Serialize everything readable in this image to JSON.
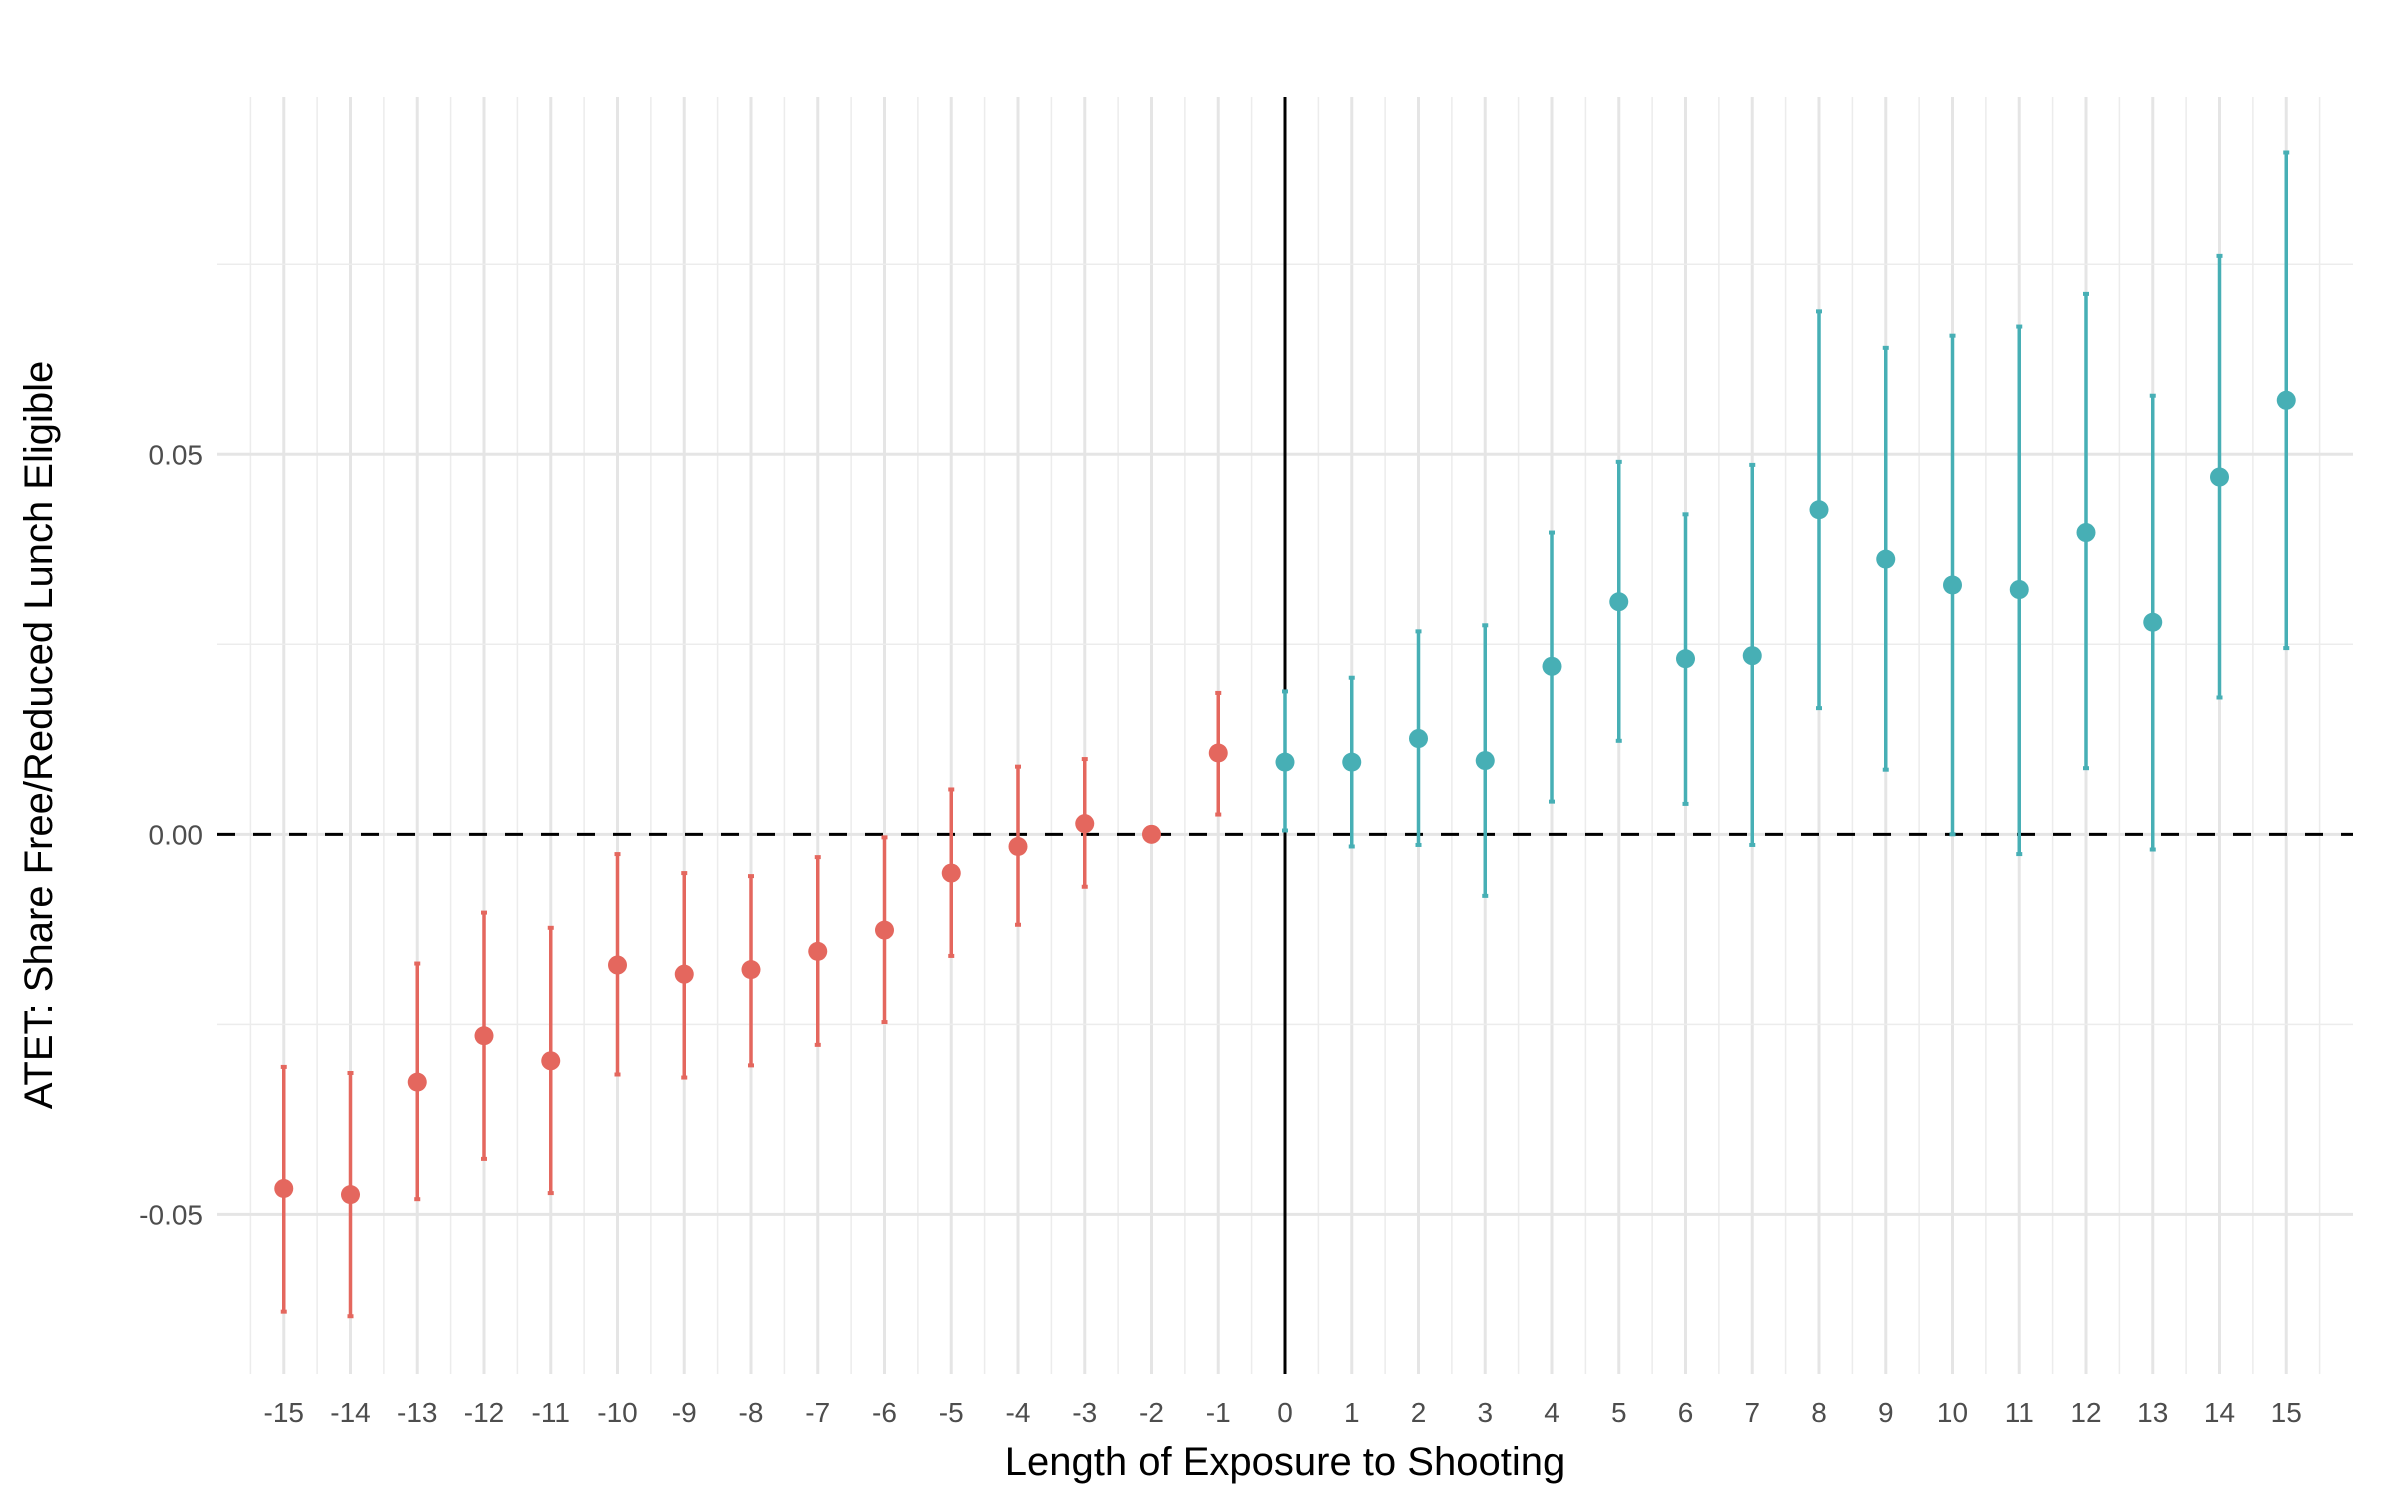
{
  "chart_data": {
    "type": "scatter",
    "subtype": "point-range (event study coefficients with confidence intervals)",
    "title": "",
    "xlabel": "Length of Exposure to Shooting",
    "ylabel": "ATET: Share Free/Reduced Lunch Eligible",
    "xlim": [
      -16,
      16
    ],
    "ylim": [
      -0.071,
      0.097
    ],
    "x_ticks": [
      "-15",
      "-14",
      "-13",
      "-12",
      "-11",
      "-10",
      "-9",
      "-8",
      "-7",
      "-6",
      "-5",
      "-4",
      "-3",
      "-2",
      "-1",
      "0",
      "1",
      "2",
      "3",
      "4",
      "5",
      "6",
      "7",
      "8",
      "9",
      "10",
      "11",
      "12",
      "13",
      "14",
      "15"
    ],
    "y_ticks": [
      {
        "value": 0.05,
        "label": "0.05"
      },
      {
        "value": 0.0,
        "label": "0.00"
      },
      {
        "value": -0.05,
        "label": "-0.05"
      }
    ],
    "grid": true,
    "reference_lines": {
      "horizontal_dashed_at": 0,
      "vertical_solid_at": 0
    },
    "colors": {
      "pre": "#E4675E",
      "post": "#47AFB5"
    },
    "legend": "none",
    "series": [
      {
        "group": "pre",
        "x": [
          -15,
          -14,
          -13,
          -12,
          -11,
          -10,
          -9,
          -8,
          -7,
          -6,
          -5,
          -4,
          -3,
          -2,
          -1
        ],
        "y": [
          -0.0466,
          -0.0474,
          -0.0326,
          -0.0265,
          -0.0298,
          -0.0172,
          -0.0184,
          -0.0178,
          -0.0154,
          -0.0126,
          -0.0051,
          -0.0016,
          0.0014,
          0.0,
          0.0107
        ],
        "ci_low": [
          -0.0628,
          -0.0634,
          -0.048,
          -0.0427,
          -0.0472,
          -0.0316,
          -0.032,
          -0.0304,
          -0.0277,
          -0.0247,
          -0.016,
          -0.0119,
          -0.0069,
          null,
          0.0026
        ],
        "ci_high": [
          -0.0306,
          -0.0314,
          -0.017,
          -0.0103,
          -0.0123,
          -0.0026,
          -0.0051,
          -0.0055,
          -0.003,
          -0.0004,
          0.0059,
          0.0089,
          0.0099,
          null,
          0.0186
        ]
      },
      {
        "group": "post",
        "x": [
          0,
          1,
          2,
          3,
          4,
          5,
          6,
          7,
          8,
          9,
          10,
          11,
          12,
          13,
          14,
          15
        ],
        "y": [
          0.0095,
          0.0095,
          0.0126,
          0.0097,
          0.0221,
          0.0306,
          0.0231,
          0.0235,
          0.0427,
          0.0362,
          0.0328,
          0.0322,
          0.0397,
          0.0279,
          0.047,
          0.0571
        ],
        "ci_low": [
          0.0005,
          -0.0016,
          -0.0014,
          -0.0081,
          0.0043,
          0.0123,
          0.004,
          -0.0014,
          0.0166,
          0.0085,
          0.0,
          -0.0026,
          0.0087,
          -0.002,
          0.018,
          0.0245
        ],
        "ci_high": [
          0.0188,
          0.0206,
          0.0267,
          0.0275,
          0.0397,
          0.049,
          0.0421,
          0.0486,
          0.0688,
          0.064,
          0.0656,
          0.0668,
          0.0711,
          0.0577,
          0.0761,
          0.0897
        ]
      }
    ]
  }
}
